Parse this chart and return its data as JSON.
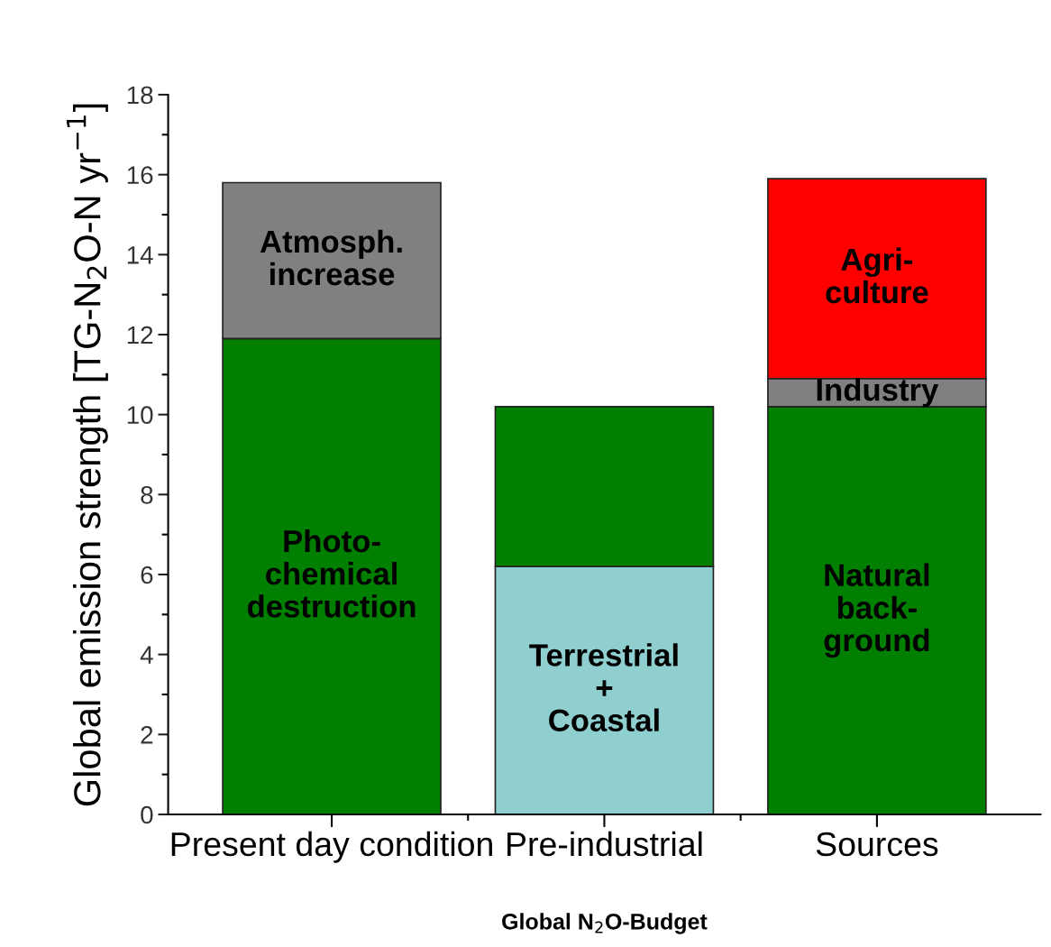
{
  "chart_data": {
    "type": "bar",
    "stacked": true,
    "xlabel": "Global N$_{2}$O-Budget",
    "ylabel": "Global emission strength [TG-N$_{2}$O-N yr$^{−1}$]",
    "categories": [
      "Present day condition",
      "Pre-industrial",
      "Sources"
    ],
    "series": [
      {
        "name": "Photo-\nchemical\ndestruction",
        "color": "#007f00",
        "values": [
          11.9,
          null,
          null
        ]
      },
      {
        "name": "Terrestrial\n+\nCoastal",
        "color": "#8fcfcf",
        "values": [
          null,
          6.2,
          null
        ]
      },
      {
        "name": "Natural\nback-\nground",
        "color": "#007f00",
        "values": [
          null,
          null,
          10.2
        ]
      },
      {
        "name": "Atmosph.\nincrease",
        "color": "#808080",
        "values": [
          3.9,
          null,
          null
        ]
      },
      {
        "color": "#007f00",
        "values": [
          null,
          4.0,
          null
        ]
      },
      {
        "name": "Industry",
        "color": "#808080",
        "values": [
          null,
          null,
          0.7
        ]
      },
      {
        "name": "Agri-\nculture",
        "color": "#ff0000",
        "values": [
          null,
          null,
          5.0
        ]
      }
    ],
    "ylim": [
      0,
      18
    ],
    "yticks": [
      0,
      2,
      4,
      6,
      8,
      10,
      12,
      14,
      16,
      18
    ],
    "grid": false,
    "legend": false
  }
}
